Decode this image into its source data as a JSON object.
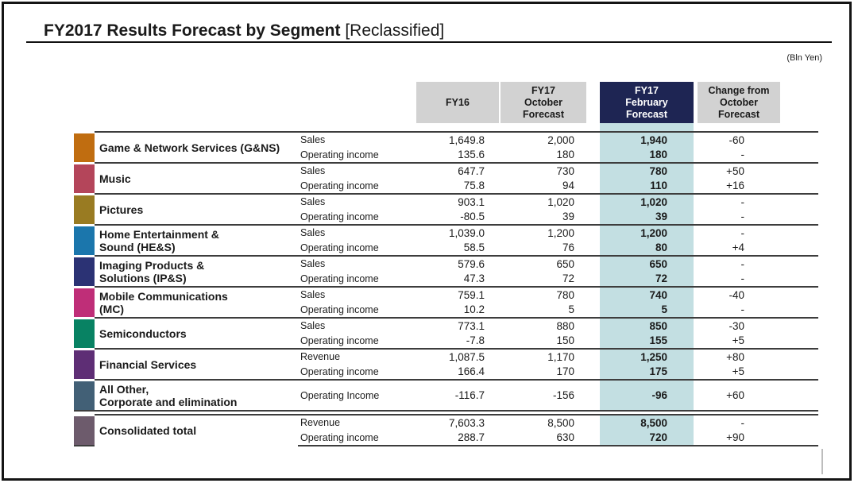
{
  "slide": {
    "title_bold": "FY2017 Results Forecast by Segment",
    "title_normal": "[Reclassified]",
    "unit_note": "(Bln Yen)"
  },
  "colors": {
    "header_gray": "#d2d2d2",
    "header_navy": "#1e2553",
    "highlight_column": "#c3dfe2",
    "row_line": "#3d3d3d"
  },
  "table": {
    "headers": {
      "fy16": "FY16",
      "oct": "FY17\nOctober\nForecast",
      "feb": "FY17\nFebruary\nForecast",
      "chg": "Change from\nOctober\nForecast"
    },
    "segments": [
      {
        "name": "Game & Network Services (G&NS)",
        "color": "#c06d10",
        "rows": [
          {
            "label": "Sales",
            "fy16": "1,649.8",
            "oct": "2,000",
            "feb": "1,940",
            "chg": "-60"
          },
          {
            "label": "Operating income",
            "fy16": "135.6",
            "oct": "180",
            "feb": "180",
            "chg": "-"
          }
        ]
      },
      {
        "name": "Music",
        "color": "#b4455a",
        "rows": [
          {
            "label": "Sales",
            "fy16": "647.7",
            "oct": "730",
            "feb": "780",
            "chg": "+50"
          },
          {
            "label": "Operating income",
            "fy16": "75.8",
            "oct": "94",
            "feb": "110",
            "chg": "+16"
          }
        ]
      },
      {
        "name": "Pictures",
        "color": "#997b22",
        "rows": [
          {
            "label": "Sales",
            "fy16": "903.1",
            "oct": "1,020",
            "feb": "1,020",
            "chg": "-"
          },
          {
            "label": "Operating income",
            "fy16": "-80.5",
            "oct": "39",
            "feb": "39",
            "chg": "-"
          }
        ]
      },
      {
        "name": "Home Entertainment &\nSound (HE&S)",
        "color": "#1b76ac",
        "rows": [
          {
            "label": "Sales",
            "fy16": "1,039.0",
            "oct": "1,200",
            "feb": "1,200",
            "chg": "-"
          },
          {
            "label": "Operating income",
            "fy16": "58.5",
            "oct": "76",
            "feb": "80",
            "chg": "+4"
          }
        ]
      },
      {
        "name": "Imaging Products &\nSolutions (IP&S)",
        "color": "#2b3274",
        "rows": [
          {
            "label": "Sales",
            "fy16": "579.6",
            "oct": "650",
            "feb": "650",
            "chg": "-"
          },
          {
            "label": "Operating income",
            "fy16": "47.3",
            "oct": "72",
            "feb": "72",
            "chg": "-"
          }
        ]
      },
      {
        "name": "Mobile Communications\n(MC)",
        "color": "#bf2e78",
        "rows": [
          {
            "label": "Sales",
            "fy16": "759.1",
            "oct": "780",
            "feb": "740",
            "chg": "-40"
          },
          {
            "label": "Operating income",
            "fy16": "10.2",
            "oct": "5",
            "feb": "5",
            "chg": "-"
          }
        ]
      },
      {
        "name": "Semiconductors",
        "color": "#088263",
        "rows": [
          {
            "label": "Sales",
            "fy16": "773.1",
            "oct": "880",
            "feb": "850",
            "chg": "-30"
          },
          {
            "label": "Operating income",
            "fy16": "-7.8",
            "oct": "150",
            "feb": "155",
            "chg": "+5"
          }
        ]
      },
      {
        "name": "Financial Services",
        "color": "#5e2e75",
        "rows": [
          {
            "label": "Revenue",
            "fy16": "1,087.5",
            "oct": "1,170",
            "feb": "1,250",
            "chg": "+80"
          },
          {
            "label": "Operating income",
            "fy16": "166.4",
            "oct": "170",
            "feb": "175",
            "chg": "+5"
          }
        ]
      },
      {
        "name": "All Other,\nCorporate and elimination",
        "color": "#426076",
        "rows": [
          {
            "label": "Operating Income",
            "fy16": "-116.7",
            "oct": "-156",
            "feb": "-96",
            "chg": "+60"
          }
        ]
      }
    ],
    "total": {
      "name": "Consolidated total",
      "color": "#6d5b6c",
      "rows": [
        {
          "label": "Revenue",
          "fy16": "7,603.3",
          "oct": "8,500",
          "feb": "8,500",
          "chg": "-"
        },
        {
          "label": "Operating income",
          "fy16": "288.7",
          "oct": "630",
          "feb": "720",
          "chg": "+90"
        }
      ]
    }
  }
}
